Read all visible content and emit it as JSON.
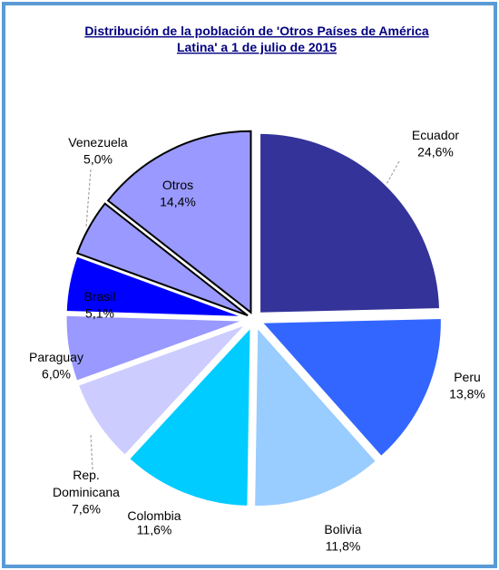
{
  "chart_data": {
    "type": "pie",
    "title": "Distribución de la población de 'Otros Países de América Latina' a 1 de julio de 2015",
    "categories": [
      "Ecuador",
      "Peru",
      "Bolivia",
      "Colombia",
      "Rep. Dominicana",
      "Paraguay",
      "Brasil",
      "Venezuela",
      "Otros"
    ],
    "values": [
      24.6,
      13.8,
      11.8,
      11.6,
      7.6,
      6.0,
      5.1,
      5.0,
      14.4
    ],
    "value_labels": [
      "24,6%",
      "13,8%",
      "11,8%",
      "11,6%",
      "7,6%",
      "6,0%",
      "5,1%",
      "5,0%",
      "14,4%"
    ],
    "colors": [
      "#333399",
      "#3366ff",
      "#99ccff",
      "#00ccff",
      "#ccccff",
      "#9999ff",
      "#0000ff",
      "#9999ff",
      "#9999ff"
    ],
    "edgecolors": [
      "#ffffff",
      "#ffffff",
      "#ffffff",
      "#ffffff",
      "#ffffff",
      "#ffffff",
      "#ffffff",
      "#000000",
      "#000000"
    ]
  }
}
